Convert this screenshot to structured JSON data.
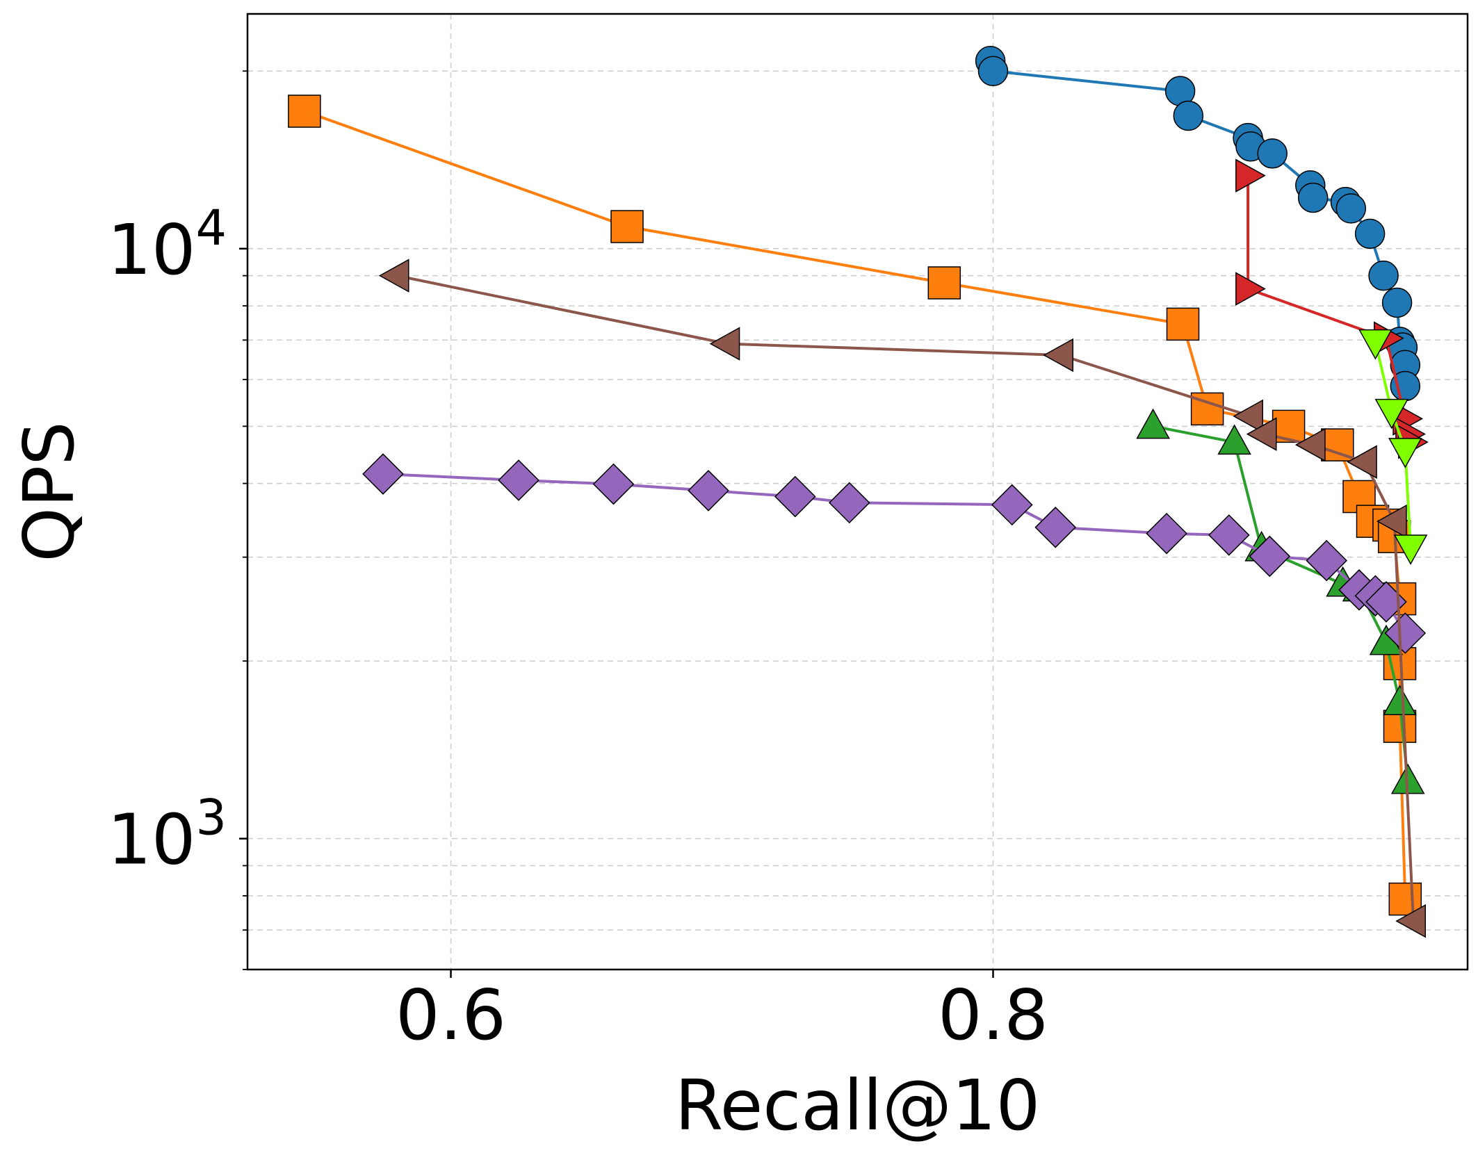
{
  "chart_data": {
    "type": "line",
    "xlabel": "Recall@10",
    "ylabel": "QPS",
    "x_scale": "linear",
    "y_scale": "log",
    "xlim": [
      0.525,
      0.975
    ],
    "ylim": [
      600,
      25000
    ],
    "grid": true,
    "x_ticks": [
      {
        "value": 0.6,
        "label": "0.6"
      },
      {
        "value": 0.8,
        "label": "0.8"
      }
    ],
    "y_ticks": [
      {
        "value": 1000,
        "base": "10",
        "exp": "3"
      },
      {
        "value": 10000,
        "base": "10",
        "exp": "4"
      }
    ],
    "series": [
      {
        "color": "#1f77b4",
        "marker": "circle",
        "points": [
          [
            0.799,
            20800
          ],
          [
            0.8,
            20000
          ],
          [
            0.869,
            18500
          ],
          [
            0.872,
            16800
          ],
          [
            0.894,
            15400
          ],
          [
            0.895,
            14900
          ],
          [
            0.903,
            14500
          ],
          [
            0.917,
            12800
          ],
          [
            0.918,
            12200
          ],
          [
            0.93,
            12000
          ],
          [
            0.932,
            11700
          ],
          [
            0.939,
            10600
          ],
          [
            0.944,
            9000
          ],
          [
            0.949,
            8100
          ],
          [
            0.95,
            6950
          ],
          [
            0.951,
            6800
          ],
          [
            0.952,
            6350
          ],
          [
            0.952,
            5850
          ]
        ]
      },
      {
        "color": "#ff7f0e",
        "marker": "square",
        "points": [
          [
            0.546,
            17100
          ],
          [
            0.665,
            10900
          ],
          [
            0.782,
            8750
          ],
          [
            0.87,
            7450
          ],
          [
            0.879,
            5350
          ],
          [
            0.909,
            5000
          ],
          [
            0.927,
            4650
          ],
          [
            0.935,
            3800
          ],
          [
            0.94,
            3450
          ],
          [
            0.946,
            3400
          ],
          [
            0.948,
            3250
          ],
          [
            0.95,
            2550
          ],
          [
            0.95,
            1980
          ],
          [
            0.95,
            1550
          ],
          [
            0.952,
            790
          ]
        ]
      },
      {
        "color": "#2ca02c",
        "marker": "triangle-up",
        "points": [
          [
            0.859,
            5000
          ],
          [
            0.889,
            4700
          ],
          [
            0.899,
            3100
          ],
          [
            0.929,
            2700
          ],
          [
            0.935,
            2650
          ],
          [
            0.945,
            2150
          ],
          [
            0.95,
            1700
          ],
          [
            0.953,
            1250
          ]
        ]
      },
      {
        "color": "#d62728",
        "marker": "triangle-right",
        "points": [
          [
            0.894,
            13300
          ],
          [
            0.894,
            8550
          ],
          [
            0.945,
            7050
          ],
          [
            0.952,
            5150
          ],
          [
            0.953,
            4850
          ],
          [
            0.954,
            4700
          ]
        ]
      },
      {
        "color": "#9467bd",
        "marker": "diamond",
        "points": [
          [
            0.575,
            4150
          ],
          [
            0.625,
            4050
          ],
          [
            0.66,
            3990
          ],
          [
            0.695,
            3890
          ],
          [
            0.727,
            3800
          ],
          [
            0.747,
            3710
          ],
          [
            0.807,
            3680
          ],
          [
            0.823,
            3370
          ],
          [
            0.864,
            3290
          ],
          [
            0.887,
            3270
          ],
          [
            0.902,
            3010
          ],
          [
            0.923,
            2960
          ],
          [
            0.935,
            2640
          ],
          [
            0.941,
            2580
          ],
          [
            0.945,
            2520
          ],
          [
            0.952,
            2230
          ]
        ]
      },
      {
        "color": "#8c564b",
        "marker": "triangle-left",
        "points": [
          [
            0.58,
            9000
          ],
          [
            0.702,
            6900
          ],
          [
            0.825,
            6600
          ],
          [
            0.895,
            5200
          ],
          [
            0.9,
            4850
          ],
          [
            0.918,
            4650
          ],
          [
            0.937,
            4350
          ],
          [
            0.948,
            3450
          ],
          [
            0.955,
            725
          ]
        ]
      },
      {
        "color": "#7fff00",
        "marker": "triangle-down",
        "points": [
          [
            0.941,
            6950
          ],
          [
            0.947,
            5300
          ],
          [
            0.952,
            4550
          ],
          [
            0.954,
            3120
          ]
        ]
      }
    ]
  }
}
